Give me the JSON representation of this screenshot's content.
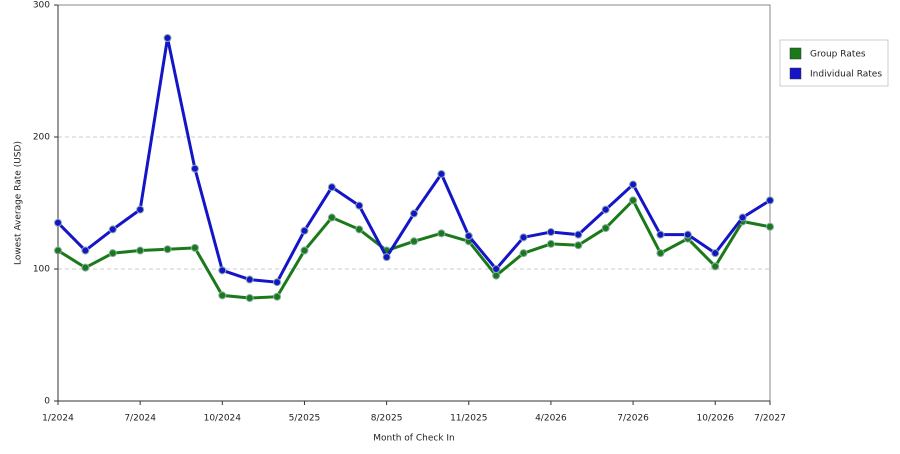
{
  "chart_data": {
    "type": "line",
    "x_label": "Month of Check In",
    "y_label": "Lowest Average Rate (USD)",
    "categories": [
      "1/2024",
      null,
      null,
      "7/2024",
      null,
      null,
      "10/2024",
      null,
      null,
      "5/2025",
      null,
      null,
      "8/2025",
      null,
      null,
      "11/2025",
      null,
      null,
      "4/2026",
      null,
      null,
      "7/2026",
      null,
      null,
      "10/2026",
      null,
      "7/2027"
    ],
    "series": [
      {
        "name": "Group Rates",
        "color": "#1a7a1a",
        "values": [
          114,
          101,
          112,
          114,
          115,
          116,
          80,
          78,
          79,
          114,
          139,
          130,
          114,
          121,
          127,
          121,
          95,
          112,
          119,
          118,
          131,
          152,
          112,
          123,
          102,
          136,
          132
        ]
      },
      {
        "name": "Individual Rates",
        "color": "#1414c8",
        "values": [
          135,
          114,
          130,
          145,
          275,
          176,
          99,
          92,
          90,
          129,
          162,
          148,
          109,
          142,
          172,
          125,
          100,
          124,
          128,
          126,
          145,
          164,
          126,
          126,
          112,
          139,
          152
        ]
      }
    ],
    "ylim": [
      0,
      300
    ],
    "yticks": [
      0,
      100,
      200,
      300
    ],
    "grid": true,
    "legend": "right"
  }
}
